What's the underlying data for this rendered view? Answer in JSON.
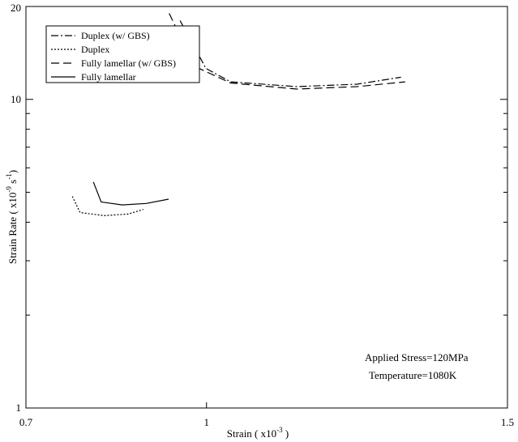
{
  "chart_data": {
    "type": "line",
    "title": "",
    "xlabel": {
      "base": "Strain  ( x10",
      "sup": "-3",
      "tail": " )"
    },
    "ylabel": {
      "base": "Strain Rate ( x10",
      "sup1": "-9",
      "mid": " s",
      "sup2": "-1",
      "tail": ")"
    },
    "xlim": [
      0.7,
      1.5
    ],
    "ylim": [
      1,
      20
    ],
    "yscale": "log",
    "x_ticks": [
      {
        "value": 0.7,
        "label": "0.7"
      },
      {
        "value": 1.0,
        "label": "1"
      },
      {
        "value": 1.5,
        "label": "1.5"
      }
    ],
    "y_ticks": [
      {
        "value": 1,
        "label": "1"
      },
      {
        "value": 10,
        "label": "10"
      },
      {
        "value": 20,
        "label": "20"
      }
    ],
    "y_minor_ticks": [
      2,
      3,
      4,
      5,
      6,
      7,
      8,
      9
    ],
    "legend_position": "top-left",
    "annotations": [
      "Applied Stress=120MPa",
      "Temperature=1080K"
    ],
    "series": [
      {
        "name": "Duplex (w/ GBS)",
        "style": "dashdot",
        "x": [
          0.956,
          0.999,
          1.04,
          1.15,
          1.25,
          1.323
        ],
        "y": [
          18.0,
          12.6,
          11.4,
          11.0,
          11.2,
          11.8
        ]
      },
      {
        "name": "Duplex",
        "style": "dotted",
        "x": [
          0.777,
          0.79,
          0.83,
          0.87,
          0.895
        ],
        "y": [
          4.85,
          4.3,
          4.2,
          4.25,
          4.4
        ]
      },
      {
        "name": "Fully lamellar (w/ GBS)",
        "style": "dashed",
        "x": [
          0.938,
          0.98,
          1.04,
          1.15,
          1.25,
          1.33
        ],
        "y": [
          19.0,
          12.8,
          11.3,
          10.8,
          11.0,
          11.4
        ]
      },
      {
        "name": "Fully lamellar",
        "style": "solid",
        "x": [
          0.812,
          0.825,
          0.86,
          0.9,
          0.937
        ],
        "y": [
          5.4,
          4.65,
          4.55,
          4.6,
          4.75
        ]
      }
    ]
  }
}
